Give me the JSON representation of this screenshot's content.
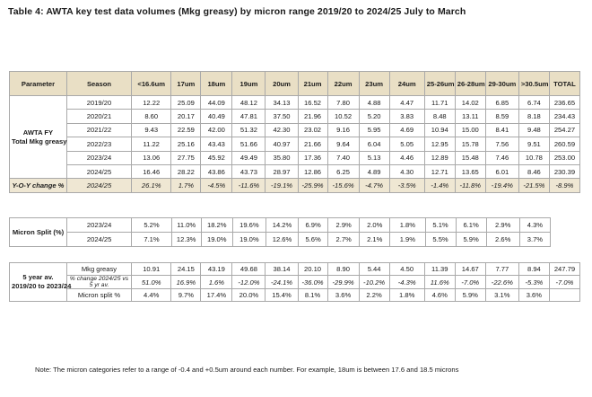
{
  "title": "Table 4: AWTA key test data volumes (Mkg greasy) by micron range 2019/20 to 2024/25 July to March",
  "headers": [
    "Parameter",
    "Season",
    "<16.6um",
    "17um",
    "18um",
    "19um",
    "20um",
    "21um",
    "22um",
    "23um",
    "24um",
    "25-26um",
    "26-28um",
    "29-30um",
    ">30.5um",
    "TOTAL"
  ],
  "table1": {
    "param_line1": "AWTA FY",
    "param_line2": "Total Mkg greasy",
    "rows": [
      {
        "season": "2019/20",
        "values": [
          "12.22",
          "25.09",
          "44.09",
          "48.12",
          "34.13",
          "16.52",
          "7.80",
          "4.88",
          "4.47",
          "11.71",
          "14.02",
          "6.85",
          "6.74",
          "236.65"
        ]
      },
      {
        "season": "2020/21",
        "values": [
          "8.60",
          "20.17",
          "40.49",
          "47.81",
          "37.50",
          "21.96",
          "10.52",
          "5.20",
          "3.83",
          "8.48",
          "13.11",
          "8.59",
          "8.18",
          "234.43"
        ]
      },
      {
        "season": "2021/22",
        "values": [
          "9.43",
          "22.59",
          "42.00",
          "51.32",
          "42.30",
          "23.02",
          "9.16",
          "5.95",
          "4.69",
          "10.94",
          "15.00",
          "8.41",
          "9.48",
          "254.27"
        ]
      },
      {
        "season": "2022/23",
        "values": [
          "11.22",
          "25.16",
          "43.43",
          "51.66",
          "40.97",
          "21.66",
          "9.64",
          "6.04",
          "5.05",
          "12.95",
          "15.78",
          "7.56",
          "9.51",
          "260.59"
        ]
      },
      {
        "season": "2023/24",
        "values": [
          "13.06",
          "27.75",
          "45.92",
          "49.49",
          "35.80",
          "17.36",
          "7.40",
          "5.13",
          "4.46",
          "12.89",
          "15.48",
          "7.46",
          "10.78",
          "253.00"
        ]
      },
      {
        "season": "2024/25",
        "values": [
          "16.46",
          "28.22",
          "43.86",
          "43.73",
          "28.97",
          "12.86",
          "6.25",
          "4.89",
          "4.30",
          "12.71",
          "13.65",
          "6.01",
          "8.46",
          "230.39"
        ]
      }
    ],
    "yoy": {
      "label": "Y-O-Y change %",
      "season": "2024/25",
      "values": [
        "26.1%",
        "1.7%",
        "-4.5%",
        "-11.6%",
        "-19.1%",
        "-25.9%",
        "-15.6%",
        "-4.7%",
        "-3.5%",
        "-1.4%",
        "-11.8%",
        "-19.4%",
        "-21.5%",
        "-8.9%"
      ]
    }
  },
  "table2": {
    "label": "Micron Split (%)",
    "rows": [
      {
        "season": "2023/24",
        "values": [
          "5.2%",
          "11.0%",
          "18.2%",
          "19.6%",
          "14.2%",
          "6.9%",
          "2.9%",
          "2.0%",
          "1.8%",
          "5.1%",
          "6.1%",
          "2.9%",
          "4.3%"
        ]
      },
      {
        "season": "2024/25",
        "values": [
          "7.1%",
          "12.3%",
          "19.0%",
          "19.0%",
          "12.6%",
          "5.6%",
          "2.7%",
          "2.1%",
          "1.9%",
          "5.5%",
          "5.9%",
          "2.6%",
          "3.7%"
        ]
      }
    ]
  },
  "table3": {
    "label_line1": "5 year av.",
    "label_line2": "2019/20 to 2023/24",
    "rows": [
      {
        "label": "Mkg greasy",
        "values": [
          "10.91",
          "24.15",
          "43.19",
          "49.68",
          "38.14",
          "20.10",
          "8.90",
          "5.44",
          "4.50",
          "11.39",
          "14.67",
          "7.77",
          "8.94",
          "247.79"
        ]
      },
      {
        "label": "% change 2024/25 vs 5 yr av.",
        "values": [
          "51.0%",
          "16.9%",
          "1.6%",
          "-12.0%",
          "-24.1%",
          "-36.0%",
          "-29.9%",
          "-10.2%",
          "-4.3%",
          "11.6%",
          "-7.0%",
          "-22.6%",
          "-5.3%",
          "-7.0%"
        ]
      },
      {
        "label": "Micron split %",
        "values": [
          "4.4%",
          "9.7%",
          "17.4%",
          "20.0%",
          "15.4%",
          "8.1%",
          "3.6%",
          "2.2%",
          "1.8%",
          "4.6%",
          "5.9%",
          "3.1%",
          "3.6%",
          ""
        ]
      }
    ]
  },
  "note": "Note: The micron categories refer to a range of -0.4 and +0.5um around each number. For example, 18um is between 17.6 and 18.5 microns"
}
